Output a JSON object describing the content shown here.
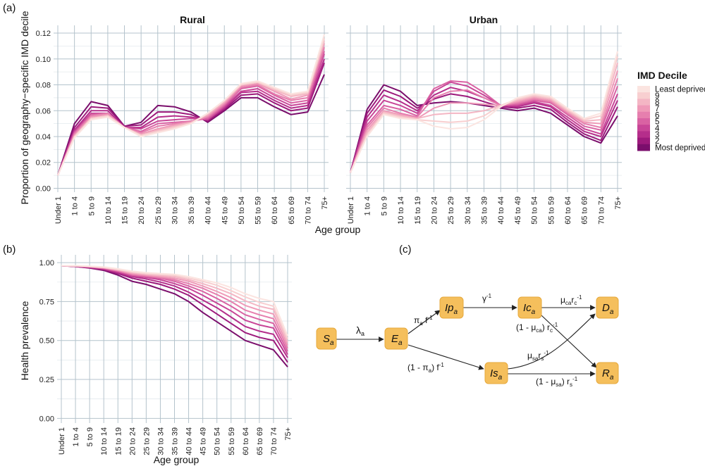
{
  "panel_labels": {
    "a": "(a)",
    "b": "(b)",
    "c": "(c)"
  },
  "chart_data": [
    {
      "id": "panel-a",
      "type": "line",
      "facets": [
        "Rural",
        "Urban"
      ],
      "ylabel": "Proportion of geography−specific IMD decile",
      "xlabel": "Age group",
      "categories": [
        "Under 1",
        "1 to 4",
        "5 to 9",
        "10 to 14",
        "15 to 19",
        "20 to 24",
        "25 to 29",
        "30 to 34",
        "35 to 39",
        "40 to 44",
        "45 to 49",
        "50 to 54",
        "55 to 59",
        "60 to 64",
        "65 to 69",
        "70 to 74",
        "75+"
      ],
      "yticks": [
        "0.00",
        "0.02",
        "0.04",
        "0.06",
        "0.08",
        "0.10",
        "0.12"
      ],
      "ylim": [
        -0.003,
        0.126
      ],
      "legend": {
        "title": "IMD Decile",
        "labels": [
          "Least deprived",
          "9",
          "8",
          "7",
          "6",
          "5",
          "4",
          "3",
          "2",
          "Most deprived"
        ],
        "colors": [
          "#fbe4e0",
          "#f8cfd0",
          "#f4b6c4",
          "#ef9ab8",
          "#e67fae",
          "#d962a3",
          "#c84597",
          "#b52e8b",
          "#9d1a7c",
          "#7b0e6c"
        ]
      },
      "series_rural": [
        {
          "name": "Most deprived",
          "values": [
            0.01,
            0.05,
            0.067,
            0.064,
            0.048,
            0.051,
            0.064,
            0.063,
            0.059,
            0.051,
            0.06,
            0.07,
            0.07,
            0.063,
            0.057,
            0.059,
            0.088
          ]
        },
        {
          "name": "2",
          "values": [
            0.01,
            0.047,
            0.063,
            0.062,
            0.048,
            0.049,
            0.059,
            0.059,
            0.057,
            0.052,
            0.061,
            0.072,
            0.073,
            0.066,
            0.06,
            0.062,
            0.097
          ]
        },
        {
          "name": "3",
          "values": [
            0.01,
            0.045,
            0.06,
            0.06,
            0.047,
            0.047,
            0.055,
            0.056,
            0.055,
            0.053,
            0.062,
            0.074,
            0.075,
            0.068,
            0.062,
            0.064,
            0.1
          ]
        },
        {
          "name": "4",
          "values": [
            0.01,
            0.044,
            0.058,
            0.058,
            0.047,
            0.046,
            0.052,
            0.053,
            0.054,
            0.053,
            0.063,
            0.075,
            0.077,
            0.07,
            0.064,
            0.066,
            0.104
          ]
        },
        {
          "name": "5",
          "values": [
            0.01,
            0.043,
            0.057,
            0.058,
            0.047,
            0.044,
            0.05,
            0.051,
            0.052,
            0.054,
            0.064,
            0.077,
            0.079,
            0.072,
            0.066,
            0.068,
            0.106
          ]
        },
        {
          "name": "6",
          "values": [
            0.01,
            0.042,
            0.056,
            0.058,
            0.047,
            0.043,
            0.048,
            0.05,
            0.052,
            0.055,
            0.065,
            0.078,
            0.08,
            0.073,
            0.068,
            0.07,
            0.109
          ]
        },
        {
          "name": "7",
          "values": [
            0.01,
            0.041,
            0.055,
            0.057,
            0.047,
            0.042,
            0.046,
            0.049,
            0.051,
            0.056,
            0.066,
            0.079,
            0.081,
            0.075,
            0.069,
            0.072,
            0.112
          ]
        },
        {
          "name": "8",
          "values": [
            0.01,
            0.04,
            0.054,
            0.056,
            0.047,
            0.041,
            0.045,
            0.048,
            0.051,
            0.057,
            0.067,
            0.08,
            0.082,
            0.076,
            0.071,
            0.073,
            0.114
          ]
        },
        {
          "name": "9",
          "values": [
            0.01,
            0.04,
            0.054,
            0.056,
            0.047,
            0.041,
            0.044,
            0.047,
            0.05,
            0.058,
            0.068,
            0.08,
            0.082,
            0.077,
            0.072,
            0.074,
            0.116
          ]
        },
        {
          "name": "Least deprived",
          "values": [
            0.01,
            0.039,
            0.053,
            0.055,
            0.047,
            0.04,
            0.043,
            0.046,
            0.05,
            0.058,
            0.068,
            0.081,
            0.083,
            0.078,
            0.073,
            0.075,
            0.119
          ]
        }
      ],
      "series_urban": [
        {
          "name": "Most deprived",
          "values": [
            0.012,
            0.061,
            0.08,
            0.075,
            0.064,
            0.066,
            0.067,
            0.066,
            0.064,
            0.062,
            0.06,
            0.062,
            0.058,
            0.049,
            0.04,
            0.035,
            0.056
          ]
        },
        {
          "name": "2",
          "values": [
            0.012,
            0.058,
            0.076,
            0.071,
            0.062,
            0.069,
            0.073,
            0.071,
            0.067,
            0.063,
            0.062,
            0.064,
            0.061,
            0.051,
            0.042,
            0.037,
            0.063
          ]
        },
        {
          "name": "3",
          "values": [
            0.012,
            0.055,
            0.072,
            0.067,
            0.06,
            0.072,
            0.078,
            0.075,
            0.07,
            0.064,
            0.063,
            0.066,
            0.063,
            0.053,
            0.044,
            0.04,
            0.068
          ]
        },
        {
          "name": "4",
          "values": [
            0.012,
            0.052,
            0.068,
            0.064,
            0.058,
            0.075,
            0.082,
            0.079,
            0.072,
            0.064,
            0.064,
            0.067,
            0.064,
            0.055,
            0.046,
            0.042,
            0.073
          ]
        },
        {
          "name": "5",
          "values": [
            0.012,
            0.049,
            0.064,
            0.061,
            0.056,
            0.077,
            0.083,
            0.082,
            0.074,
            0.064,
            0.065,
            0.068,
            0.066,
            0.057,
            0.048,
            0.045,
            0.079
          ]
        },
        {
          "name": "6",
          "values": [
            0.012,
            0.047,
            0.062,
            0.058,
            0.055,
            0.07,
            0.075,
            0.076,
            0.07,
            0.064,
            0.066,
            0.069,
            0.067,
            0.058,
            0.05,
            0.047,
            0.085
          ]
        },
        {
          "name": "7",
          "values": [
            0.012,
            0.045,
            0.06,
            0.057,
            0.054,
            0.062,
            0.066,
            0.066,
            0.065,
            0.064,
            0.067,
            0.07,
            0.068,
            0.059,
            0.051,
            0.05,
            0.091
          ]
        },
        {
          "name": "8",
          "values": [
            0.012,
            0.043,
            0.059,
            0.056,
            0.054,
            0.057,
            0.058,
            0.058,
            0.06,
            0.064,
            0.068,
            0.071,
            0.069,
            0.06,
            0.052,
            0.053,
            0.097
          ]
        },
        {
          "name": "9",
          "values": [
            0.012,
            0.041,
            0.058,
            0.055,
            0.053,
            0.052,
            0.051,
            0.052,
            0.056,
            0.064,
            0.069,
            0.072,
            0.07,
            0.061,
            0.053,
            0.056,
            0.102
          ]
        },
        {
          "name": "Least deprived",
          "values": [
            0.012,
            0.04,
            0.057,
            0.054,
            0.053,
            0.048,
            0.046,
            0.047,
            0.053,
            0.063,
            0.07,
            0.073,
            0.071,
            0.062,
            0.054,
            0.058,
            0.106
          ]
        }
      ]
    },
    {
      "id": "panel-b",
      "type": "line",
      "ylabel": "Health prevalence",
      "xlabel": "Age group",
      "categories": [
        "Under 1",
        "1 to 4",
        "5 to 9",
        "10 to 14",
        "15 to 19",
        "20 to 24",
        "25 to 29",
        "30 to 34",
        "35 to 39",
        "40 to 44",
        "45 to 49",
        "50 to 54",
        "55 to 59",
        "60 to 64",
        "65 to 69",
        "70 to 74",
        "75+"
      ],
      "yticks": [
        "0.00",
        "0.25",
        "0.50",
        "0.75",
        "1.00"
      ],
      "ylim": [
        -0.03,
        1.05
      ],
      "series": [
        {
          "name": "Most deprived",
          "values": [
            0.98,
            0.975,
            0.965,
            0.95,
            0.92,
            0.88,
            0.86,
            0.83,
            0.8,
            0.75,
            0.68,
            0.62,
            0.56,
            0.5,
            0.47,
            0.44,
            0.33
          ]
        },
        {
          "name": "2",
          "values": [
            0.98,
            0.975,
            0.967,
            0.955,
            0.93,
            0.9,
            0.88,
            0.86,
            0.83,
            0.79,
            0.73,
            0.67,
            0.61,
            0.55,
            0.52,
            0.5,
            0.36
          ]
        },
        {
          "name": "3",
          "values": [
            0.98,
            0.976,
            0.969,
            0.958,
            0.935,
            0.91,
            0.895,
            0.875,
            0.85,
            0.81,
            0.76,
            0.71,
            0.65,
            0.59,
            0.56,
            0.54,
            0.39
          ]
        },
        {
          "name": "4",
          "values": [
            0.98,
            0.977,
            0.971,
            0.961,
            0.94,
            0.915,
            0.905,
            0.89,
            0.865,
            0.835,
            0.79,
            0.74,
            0.69,
            0.63,
            0.6,
            0.58,
            0.41
          ]
        },
        {
          "name": "5",
          "values": [
            0.98,
            0.977,
            0.972,
            0.963,
            0.945,
            0.92,
            0.91,
            0.9,
            0.88,
            0.85,
            0.815,
            0.77,
            0.72,
            0.665,
            0.635,
            0.61,
            0.43
          ]
        },
        {
          "name": "6",
          "values": [
            0.98,
            0.978,
            0.973,
            0.965,
            0.948,
            0.925,
            0.915,
            0.905,
            0.89,
            0.865,
            0.835,
            0.795,
            0.75,
            0.695,
            0.665,
            0.64,
            0.45
          ]
        },
        {
          "name": "7",
          "values": [
            0.98,
            0.978,
            0.974,
            0.967,
            0.951,
            0.93,
            0.92,
            0.91,
            0.9,
            0.88,
            0.85,
            0.815,
            0.775,
            0.725,
            0.695,
            0.67,
            0.47
          ]
        },
        {
          "name": "8",
          "values": [
            0.98,
            0.979,
            0.975,
            0.968,
            0.954,
            0.935,
            0.925,
            0.917,
            0.91,
            0.89,
            0.865,
            0.835,
            0.8,
            0.755,
            0.72,
            0.7,
            0.49
          ]
        },
        {
          "name": "9",
          "values": [
            0.98,
            0.979,
            0.976,
            0.97,
            0.957,
            0.94,
            0.93,
            0.924,
            0.918,
            0.9,
            0.88,
            0.855,
            0.82,
            0.78,
            0.745,
            0.72,
            0.51
          ]
        },
        {
          "name": "Least deprived",
          "values": [
            0.98,
            0.98,
            0.977,
            0.972,
            0.96,
            0.945,
            0.935,
            0.93,
            0.925,
            0.91,
            0.89,
            0.87,
            0.84,
            0.8,
            0.77,
            0.75,
            0.53
          ]
        }
      ]
    }
  ],
  "diagram": {
    "nodes": {
      "S": {
        "main": "S",
        "sub": "a"
      },
      "E": {
        "main": "E",
        "sub": "a"
      },
      "Ip": {
        "main": "Ip",
        "sub": "a"
      },
      "Ic": {
        "main": "Ic",
        "sub": "a"
      },
      "Is": {
        "main": "Is",
        "sub": "a"
      },
      "D": {
        "main": "D",
        "sub": "a"
      },
      "R": {
        "main": "R",
        "sub": "a"
      }
    },
    "edge_labels": {
      "S_E": "λ",
      "S_E_sub": "a",
      "E_Ip_pi": "π",
      "E_Ip_sub": "a",
      "E_Ip_rest": " f",
      "E_Ip_sup": "-1",
      "Ip_Ic": "γ",
      "Ip_Ic_sup": "-1",
      "Ic_D_mu": "μ",
      "Ic_D_mu_sub": "ca",
      "Ic_D_r": "r",
      "Ic_D_r_sub": "c",
      "Ic_D_r_sup": "-1",
      "Ic_R_a": "(1 - μ",
      "Ic_R_sub": "ca",
      "Ic_R_b": ") r",
      "Ic_R_r_sub": "c",
      "Ic_R_r_sup": "-1",
      "E_Is_a": "(1 - π",
      "E_Is_sub": "a",
      "E_Is_b": ") f",
      "E_Is_sup": "-1",
      "Is_D_mu": "μ",
      "Is_D_mu_sub": "sa",
      "Is_D_r": "r",
      "Is_D_r_sub": "s",
      "Is_D_r_sup": "-1",
      "Is_R_a": "(1 - μ",
      "Is_R_sub": "sa",
      "Is_R_b": ") r",
      "Is_R_r_sub": "s",
      "Is_R_r_sup": "-1"
    }
  }
}
